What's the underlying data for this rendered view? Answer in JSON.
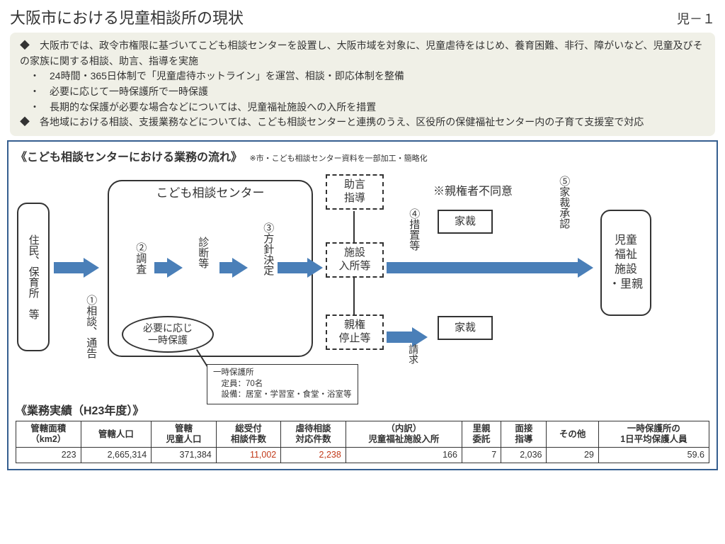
{
  "title": "大阪市における児童相談所の現状",
  "page_number": "児－１",
  "intro": {
    "line1": "◆　大阪市では、政令市権限に基づいてこども相談センターを設置し、大阪市域を対象に、児童虐待をはじめ、養育困難、非行、障がいなど、児童及びその家族に関する相談、助言、指導を実施",
    "b1": "　・　24時間・365日体制で「児童虐待ホットライン」を運営、相談・即応体制を整備",
    "b2": "　・　必要に応じて一時保護所で一時保護",
    "b3": "　・　長期的な保護が必要な場合などについては、児童福祉施設への入所を措置",
    "line2": "◆　各地域における相談、支援業務などについては、こども相談センターと連携のうえ、区役所の保健福祉センター内の子育て支援室で対応"
  },
  "flow": {
    "heading": "《こども相談センターにおける業務の流れ》",
    "heading_note": "※市・こども相談センター資料を一部加工・簡略化",
    "residents": "住民、保育所　等",
    "step1": "①相談、通告",
    "center_title": "こども相談センター",
    "step2": "②調査",
    "diagnosis": "診断等",
    "step3": "③方針決定",
    "bubble": "必要に応じ\n一時保護",
    "info_title": "一時保護所",
    "info_l1": "　定員：70名",
    "info_l2": "　設備：居室・学習室・食堂・浴室等",
    "opt1": "助言\n指導",
    "opt2": "施設\n入所等",
    "opt3": "親権\n停止等",
    "step4": "④措置等",
    "disagree": "※親権者不同意",
    "kasai": "家裁",
    "step5": "⑤家裁承認",
    "request": "請求",
    "dest": "児童\n福祉\n施設\n・里親"
  },
  "perf_heading": "《業務実績（H23年度）》",
  "table": {
    "columns": [
      "管轄面積\n（km2）",
      "管轄人口",
      "管轄\n児童人口",
      "総受付\n相談件数",
      "虐待相談\n対応件数",
      "（内訳）\n児童福祉施設入所",
      "里親\n委託",
      "面接\n指導",
      "その他",
      "一時保護所の\n1日平均保護人員"
    ],
    "row": [
      "223",
      "2,665,314",
      "371,384",
      "11,002",
      "2,238",
      "166",
      "7",
      "2,036",
      "29",
      "59.6"
    ],
    "highlight_cols": [
      3,
      4
    ]
  },
  "colors": {
    "arrow": "#4a7fb8",
    "border": "#355e8f",
    "intro_bg": "#f0f0e7",
    "highlight": "#c23a1a"
  }
}
